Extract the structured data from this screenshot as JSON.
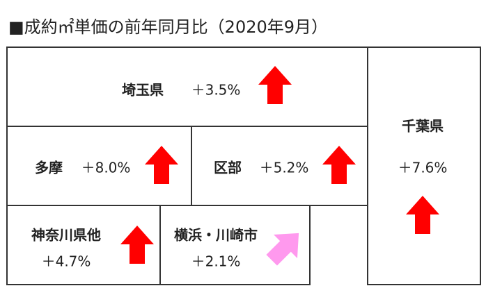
{
  "title": "■成約㎡単価の前年同月比（2020年9月）",
  "regions": [
    {
      "name": "埼玉県",
      "change": "＋3.5%"
    },
    {
      "name": "千葉県",
      "change": "＋7.6%"
    },
    {
      "name": "多摩",
      "change": "＋8.0%"
    },
    {
      "name": "区部",
      "change": "＋5.2%"
    },
    {
      "name": "神奈川県他",
      "change": "＋4.7%"
    },
    {
      "name": "横浜・川崎市",
      "change": "＋2.1%"
    }
  ]
}
